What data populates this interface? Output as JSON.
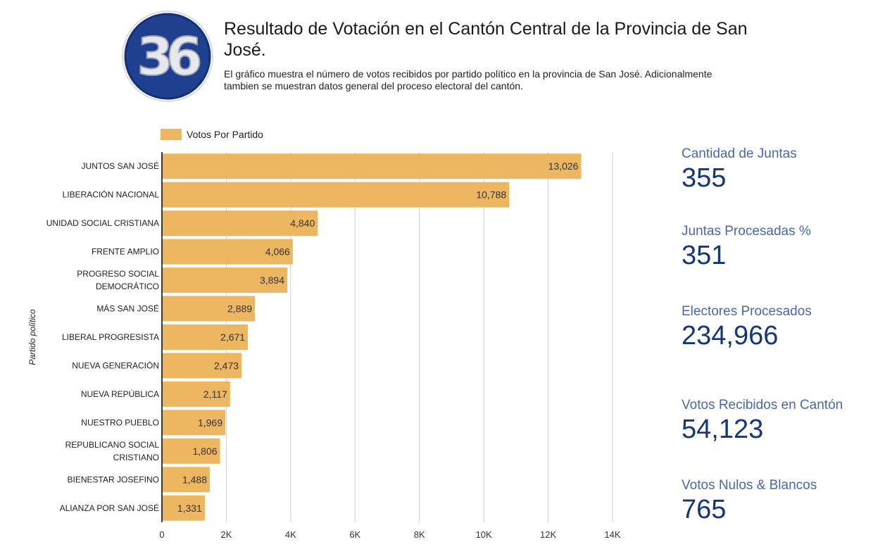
{
  "header": {
    "logo_text": "36",
    "title": "Resultado de Votación en el Cantón Central de la Provincia de San José.",
    "subtitle": "El gráfico muestra el número de votos recibidos por partido político en la provincia de San José. Adicionalmente tambien se muestran datos general del proceso electoral del cantón."
  },
  "colors": {
    "bar": "#EDB660",
    "logo_ring": "#1F3F8F",
    "kpi_label": "#4A68A8",
    "kpi_value": "#14367A"
  },
  "chart_data": {
    "type": "bar",
    "orientation": "horizontal",
    "ylabel": "Partido político",
    "xlim": [
      0,
      14000
    ],
    "x_ticks": [
      "0",
      "2K",
      "4K",
      "6K",
      "8K",
      "10K",
      "12K",
      "14K"
    ],
    "x_tick_values": [
      0,
      2000,
      4000,
      6000,
      8000,
      10000,
      12000,
      14000
    ],
    "grid": true,
    "legend_position": "top-left",
    "series": [
      {
        "name": "Votos Por Partido",
        "values": [
          13026,
          10788,
          4840,
          4066,
          3894,
          2889,
          2671,
          2473,
          2117,
          1969,
          1806,
          1488,
          1331
        ],
        "labels": [
          "13,026",
          "10,788",
          "4,840",
          "4,066",
          "3,894",
          "2,889",
          "2,671",
          "2,473",
          "2,117",
          "1,969",
          "1,806",
          "1,488",
          "1,331"
        ]
      }
    ],
    "categories": [
      "JUNTOS SAN JOSÉ",
      "LIBERACIÓN NACIONAL",
      "UNIDAD SOCIAL CRISTIANA",
      "FRENTE AMPLIO",
      "PROGRESO SOCIAL DEMOCRÁTICO",
      "MÁS SAN JOSÉ",
      "LIBERAL PROGRESISTA",
      "NUEVA GENERACIÓN",
      "NUEVA REPÚBLICA",
      "NUESTRO PUEBLO",
      "REPUBLICANO SOCIAL CRISTIANO",
      "BIENESTAR JOSEFINO",
      "ALIANZA POR SAN JOSÉ"
    ],
    "category_lines": [
      [
        "JUNTOS SAN JOSÉ"
      ],
      [
        "LIBERACIÓN NACIONAL"
      ],
      [
        "UNIDAD SOCIAL CRISTIANA"
      ],
      [
        "FRENTE AMPLIO"
      ],
      [
        "PROGRESO SOCIAL",
        "DEMOCRÁTICO"
      ],
      [
        "MÁS SAN JOSÉ"
      ],
      [
        "LIBERAL PROGRESISTA"
      ],
      [
        "NUEVA GENERACIÓN"
      ],
      [
        "NUEVA REPÚBLICA"
      ],
      [
        "NUESTRO PUEBLO"
      ],
      [
        "REPUBLICANO SOCIAL",
        "CRISTIANO"
      ],
      [
        "BIENESTAR JOSEFINO"
      ],
      [
        "ALIANZA POR SAN JOSÉ"
      ]
    ]
  },
  "kpis": [
    {
      "label": "Cantidad de Juntas",
      "value": "355"
    },
    {
      "label": "Juntas Procesadas %",
      "value": "351"
    },
    {
      "label": "Electores Procesados",
      "value": "234,966"
    },
    {
      "label": "Votos Recibidos en Cantón",
      "value": "54,123"
    },
    {
      "label": "Votos Nulos & Blancos",
      "value": "765"
    }
  ]
}
